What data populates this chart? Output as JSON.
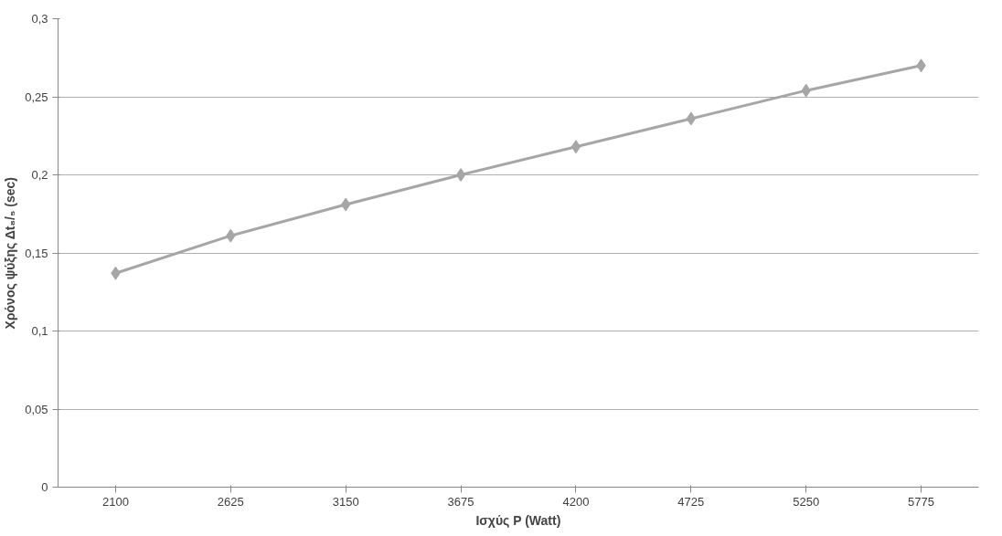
{
  "chart_data": {
    "type": "line",
    "xlabel": "Ισχύς P (Watt)",
    "ylabel": "Χρόνος ψύξης Δt₈/₅ (sec)",
    "categories": [
      "2100",
      "2625",
      "3150",
      "3675",
      "4200",
      "4725",
      "5250",
      "5775"
    ],
    "series": [
      {
        "color": "#a6a6a6",
        "values": [
          0.137,
          0.161,
          0.181,
          0.2,
          0.218,
          0.236,
          0.254,
          0.27
        ]
      }
    ],
    "ylim": [
      0,
      0.3
    ],
    "yticks": [
      0,
      {
        "value": 0.05,
        "label": "0,05"
      },
      {
        "value": 0.1,
        "label": "0,1"
      },
      {
        "value": 0.15,
        "label": "0,15"
      },
      {
        "value": 0.2,
        "label": "0,2"
      },
      {
        "value": 0.25,
        "label": "0,25"
      },
      {
        "value": 0.3,
        "label": "0,3"
      }
    ],
    "grid": "y",
    "marker": "diamond",
    "line_style": "solid"
  }
}
